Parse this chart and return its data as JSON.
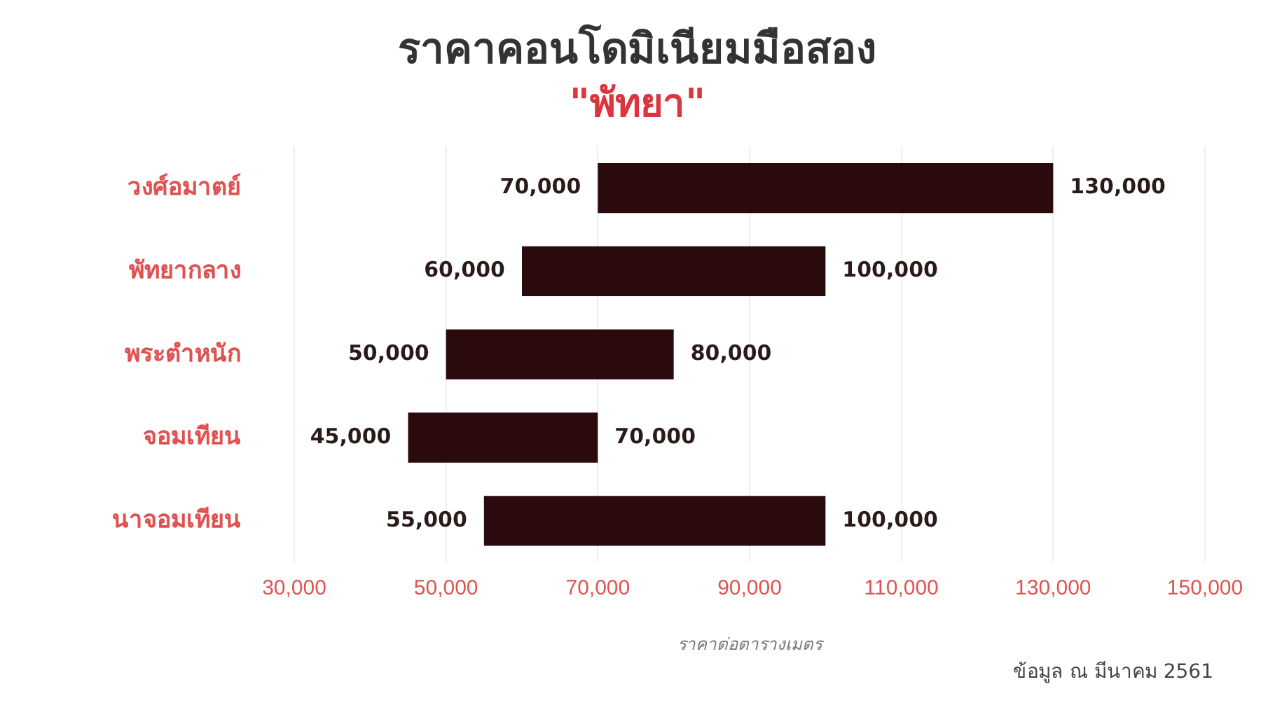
{
  "chart_data": {
    "type": "bar",
    "orientation": "horizontal",
    "title": "ราคาคอนโดมิเนียมมือสอง",
    "subtitle": "\"พัทยา\"",
    "xlabel": "ราคาต่อตารางเมตร",
    "categories": [
      "วงศ์อมาตย์",
      "พัทยากลาง",
      "พระตำหนัก",
      "จอมเทียน",
      "นาจอมเทียน"
    ],
    "base": [
      70000,
      60000,
      50000,
      45000,
      55000
    ],
    "values": [
      60000,
      40000,
      30000,
      25000,
      45000
    ],
    "color": "#2b0a0d",
    "xlim": [
      30000,
      150000
    ],
    "xticks": [
      {
        "value": 30000,
        "label": "30,000"
      },
      {
        "value": 50000,
        "label": "50,000"
      },
      {
        "value": 70000,
        "label": "70,000"
      },
      {
        "value": 90000,
        "label": "90,000"
      },
      {
        "value": 110000,
        "label": "110,000"
      },
      {
        "value": 130000,
        "label": "130,000"
      },
      {
        "value": 150000,
        "label": "150,000"
      }
    ],
    "grid": "x",
    "legend": false,
    "annotations": [
      {
        "text": "70,000",
        "x": 70000,
        "y": "วงศ์อมาตย์"
      },
      {
        "text": "130,000",
        "x": 130000,
        "y": "วงศ์อมาตย์"
      },
      {
        "text": "60,000",
        "x": 60000,
        "y": "พัทยากลาง"
      },
      {
        "text": "100,000",
        "x": 100000,
        "y": "พัทยากลาง"
      },
      {
        "text": "50,000",
        "x": 50000,
        "y": "พระตำหนัก"
      },
      {
        "text": "80,000",
        "x": 80000,
        "y": "พระตำหนัก"
      },
      {
        "text": "45,000",
        "x": 45000,
        "y": "จอมเทียน"
      },
      {
        "text": "70,000",
        "x": 70000,
        "y": "จอมเทียน"
      },
      {
        "text": "55,000",
        "x": 55000,
        "y": "นาจอมเทียน"
      },
      {
        "text": "100,000",
        "x": 100000,
        "y": "นาจอมเทียน"
      },
      "ข้อมูล ณ มีนาคม 2561"
    ]
  }
}
